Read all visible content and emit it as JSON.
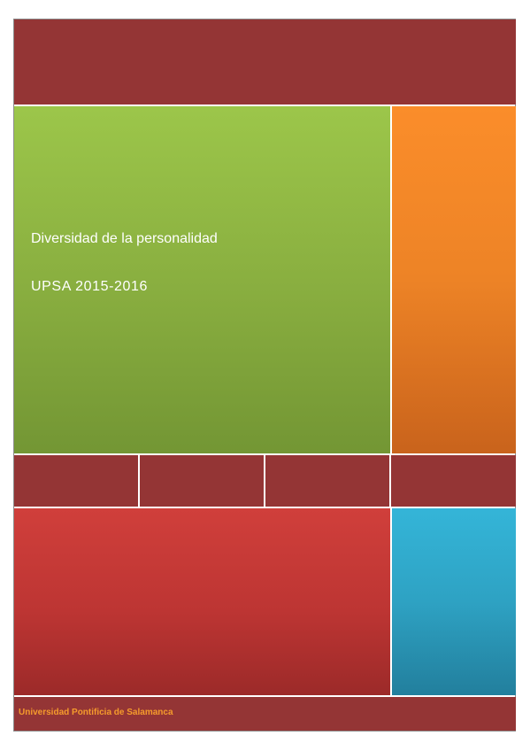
{
  "cover": {
    "title": "Diversidad de la personalidad",
    "subtitle": "UPSA 2015-2016",
    "footer": "Universidad Pontificia de Salamanca"
  },
  "colors": {
    "band": "#943535",
    "green": "#9cc64a",
    "orange": "#fb8d2a",
    "red": "#d03f3b",
    "blue": "#34b5d8",
    "footer_text": "#f59b2c"
  }
}
